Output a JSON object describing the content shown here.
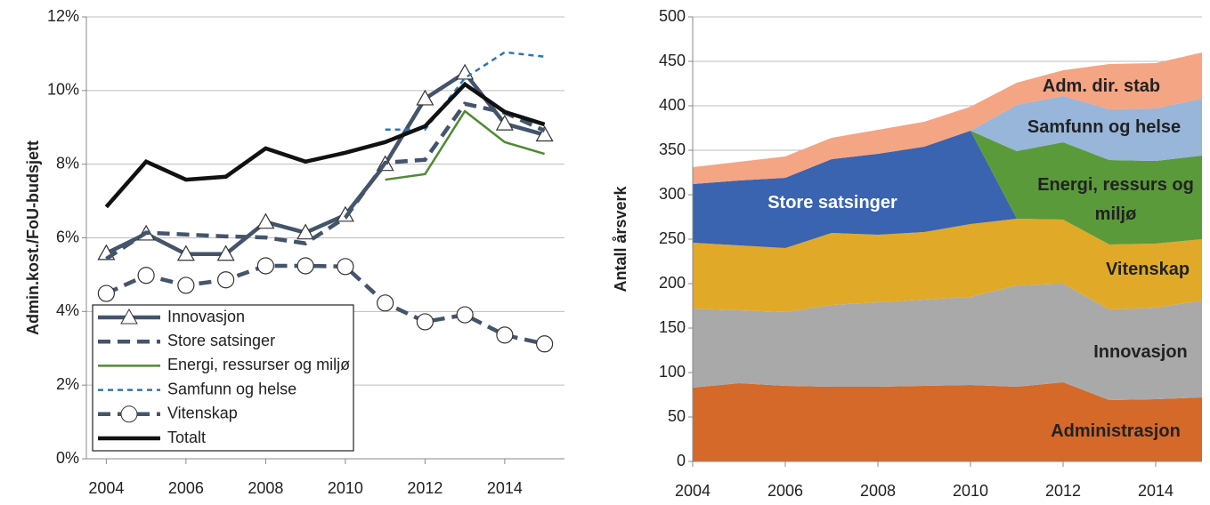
{
  "chart_data": [
    {
      "type": "line",
      "y_label": "Admin.kost./FoU-budsjett",
      "x": [
        2004,
        2005,
        2006,
        2007,
        2008,
        2009,
        2010,
        2011,
        2012,
        2013,
        2014,
        2015
      ],
      "xlim": [
        2003.5,
        2015.5
      ],
      "xticks": [
        2004,
        2006,
        2008,
        2010,
        2012,
        2014
      ],
      "ylim": [
        0,
        12
      ],
      "yticks": [
        {
          "value": 0,
          "label": "0%"
        },
        {
          "value": 2,
          "label": "2%"
        },
        {
          "value": 4,
          "label": "4%"
        },
        {
          "value": 6,
          "label": "6%"
        },
        {
          "value": 8,
          "label": "8%"
        },
        {
          "value": 10,
          "label": "10%"
        },
        {
          "value": 12,
          "label": "12%"
        }
      ],
      "grid": true,
      "legend": "lower left",
      "series": [
        {
          "name": "Innovasjon",
          "color": "#44546a",
          "marker": "triangle",
          "dash": "solid",
          "values": [
            5.58,
            6.11,
            5.56,
            5.56,
            6.43,
            6.14,
            6.62,
            8.0,
            9.78,
            10.48,
            9.1,
            8.8
          ]
        },
        {
          "name": "Store satsinger",
          "color": "#44546a",
          "marker": "none",
          "dash": "dashed",
          "values": [
            5.43,
            6.14,
            6.09,
            6.04,
            6.01,
            5.85,
            6.55,
            8.04,
            8.12,
            9.64,
            9.4,
            8.91
          ]
        },
        {
          "name": "Energi, ressurser og miljø",
          "color": "#4e8a33",
          "marker": "none",
          "dash": "solid",
          "values": [
            null,
            null,
            null,
            null,
            null,
            null,
            null,
            7.58,
            7.73,
            9.44,
            8.6,
            8.28
          ]
        },
        {
          "name": "Samfunn og helse",
          "color": "#2e75b6",
          "marker": "none",
          "dash": "dotted",
          "values": [
            null,
            null,
            null,
            null,
            null,
            null,
            null,
            8.94,
            8.94,
            10.34,
            11.04,
            10.92
          ]
        },
        {
          "name": "Vitenskap",
          "color": "#44546a",
          "marker": "circle",
          "dash": "dashed",
          "values": [
            4.49,
            4.98,
            4.71,
            4.86,
            5.24,
            5.24,
            5.22,
            4.23,
            3.72,
            3.91,
            3.36,
            3.12
          ]
        },
        {
          "name": "Totalt",
          "color": "#111111",
          "marker": "none",
          "dash": "solid",
          "values": [
            6.84,
            8.07,
            7.58,
            7.66,
            8.43,
            8.07,
            8.31,
            8.6,
            9.03,
            10.17,
            9.42,
            9.08
          ]
        }
      ]
    },
    {
      "type": "stacked_area",
      "y_label": "Antall årsverk",
      "x": [
        2004,
        2005,
        2006,
        2007,
        2008,
        2009,
        2010,
        2011,
        2012,
        2013,
        2014,
        2015
      ],
      "xlim": [
        2004,
        2015
      ],
      "xticks": [
        2004,
        2006,
        2008,
        2010,
        2012,
        2014
      ],
      "ylim": [
        0,
        500
      ],
      "yticks": [
        0,
        50,
        100,
        150,
        200,
        250,
        300,
        350,
        400,
        450,
        500
      ],
      "grid": true,
      "series": [
        {
          "name": "Administrasjon",
          "color": "#d4692a",
          "values": [
            83,
            88,
            85,
            84,
            84,
            85,
            86,
            84,
            89,
            69,
            70,
            72
          ]
        },
        {
          "name": "Innovasjon",
          "color": "#a9a9a9",
          "values": [
            89,
            82,
            83,
            92,
            95,
            97,
            99,
            114,
            111,
            102,
            103,
            109
          ]
        },
        {
          "name": "Vitenskap",
          "color": "#e0aa28",
          "values": [
            74,
            73,
            72,
            81,
            76,
            76,
            82,
            75,
            72,
            73,
            72,
            69
          ]
        },
        {
          "name": "Store satsinger",
          "color": "#3a63b0",
          "values": [
            66,
            73,
            79,
            83,
            91,
            96,
            105,
            0,
            0,
            0,
            0,
            0
          ]
        },
        {
          "name": "Energi, ressurs og miljø",
          "color": "#5b9a3a",
          "values": [
            0,
            0,
            0,
            0,
            0,
            0,
            0,
            76,
            87,
            95,
            93,
            94
          ]
        },
        {
          "name": "Samfunn og helse",
          "color": "#98b5da",
          "values": [
            0,
            0,
            0,
            0,
            0,
            0,
            0,
            52,
            52,
            57,
            59,
            64
          ]
        },
        {
          "name": "Adm. dir. stab",
          "color": "#f4a583",
          "values": [
            19,
            21,
            24,
            24,
            27,
            28,
            27,
            25,
            29,
            51,
            51,
            52
          ]
        }
      ]
    }
  ]
}
